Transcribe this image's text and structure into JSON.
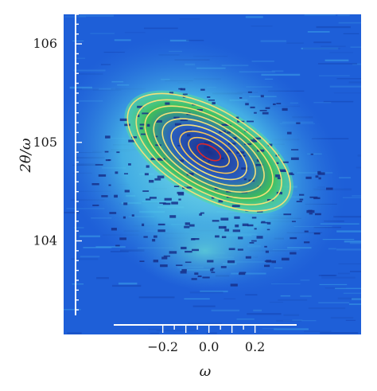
{
  "chart_data": {
    "type": "heatmap",
    "title": "",
    "xlabel": "ω",
    "ylabel": "2θ/ω",
    "x_ticks": [
      {
        "value": -0.2,
        "label": "−0.2"
      },
      {
        "value": 0.0,
        "label": "0.0"
      },
      {
        "value": 0.2,
        "label": "0.2"
      }
    ],
    "y_ticks": [
      {
        "value": 104,
        "label": "104"
      },
      {
        "value": 105,
        "label": "105"
      },
      {
        "value": 106,
        "label": "106"
      }
    ],
    "xlim": [
      -0.63,
      0.66
    ],
    "ylim": [
      103.05,
      106.3
    ],
    "peak": {
      "omega": 0.0,
      "two_theta_omega": 104.9,
      "tilt_deg": 30
    },
    "contour_count": 9,
    "colors": {
      "background": "#1e5fd8",
      "halo": "#4fc7e8",
      "mid": "#55d9a8",
      "peak_ring": "#f2e07a",
      "core": "#1b2f8a",
      "center_ring": "#e02828"
    }
  }
}
